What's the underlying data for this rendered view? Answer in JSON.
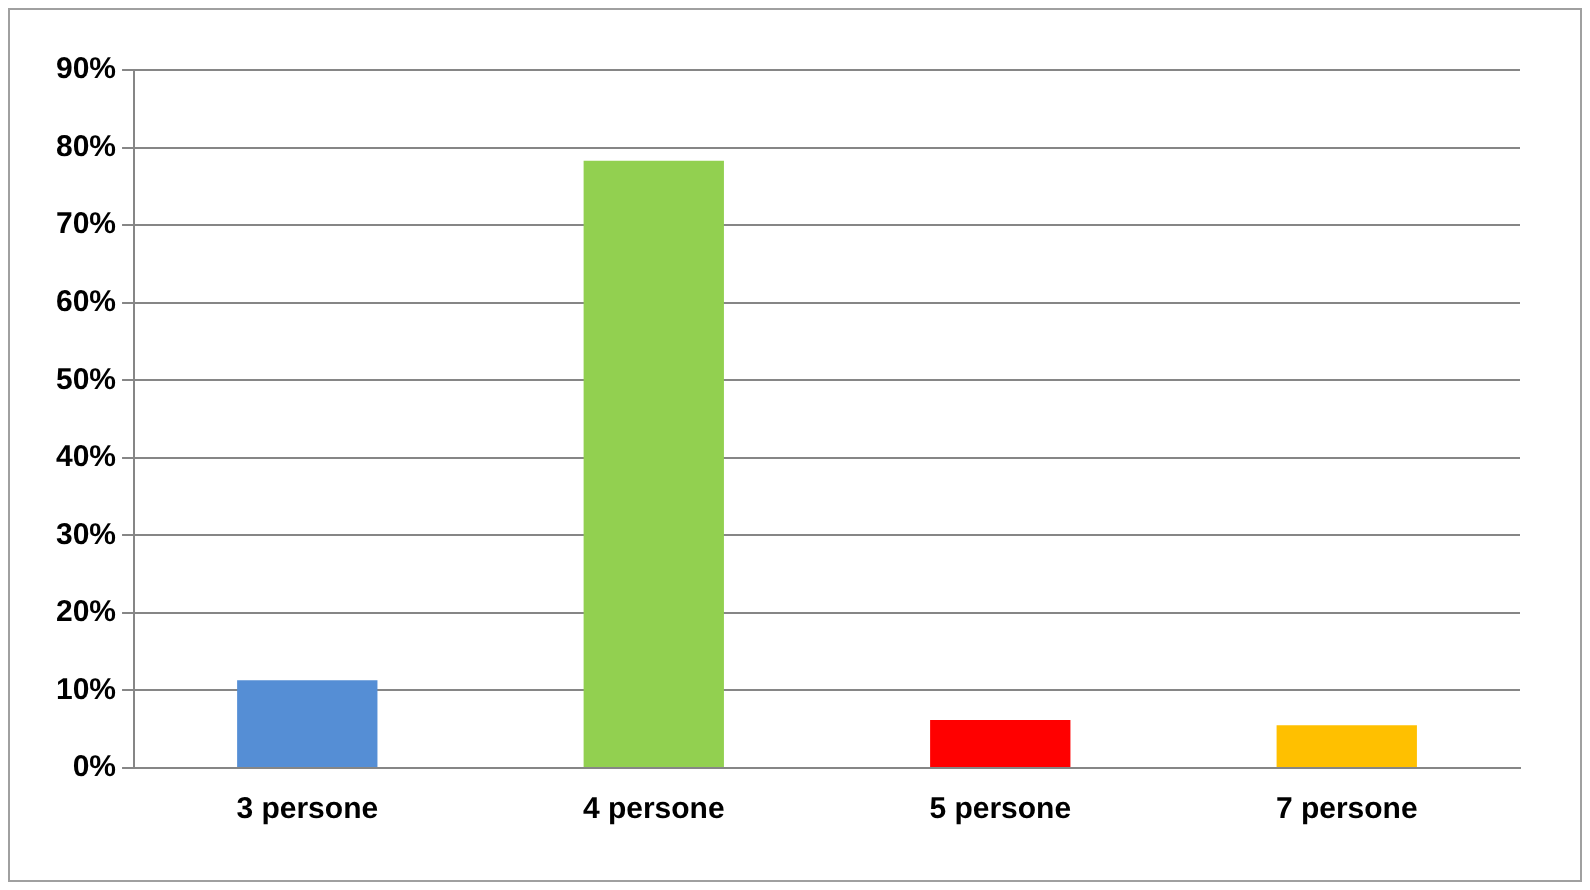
{
  "chart_data": {
    "type": "bar",
    "categories": [
      "3 persone",
      "4 persone",
      "5 persone",
      "7 persone"
    ],
    "values": [
      11.3,
      78.3,
      6.2,
      5.5
    ],
    "colors": [
      "#558ed5",
      "#92d050",
      "#ff0000",
      "#ffc000"
    ],
    "ylim": [
      0,
      90
    ],
    "yticks": [
      {
        "value": 0,
        "label": "0%"
      },
      {
        "value": 10,
        "label": "10%"
      },
      {
        "value": 20,
        "label": "20%"
      },
      {
        "value": 30,
        "label": "30%"
      },
      {
        "value": 40,
        "label": "40%"
      },
      {
        "value": 50,
        "label": "50%"
      },
      {
        "value": 60,
        "label": "60%"
      },
      {
        "value": 70,
        "label": "70%"
      },
      {
        "value": 80,
        "label": "80%"
      },
      {
        "value": 90,
        "label": "90%"
      }
    ],
    "grid": "y",
    "legend": false
  }
}
